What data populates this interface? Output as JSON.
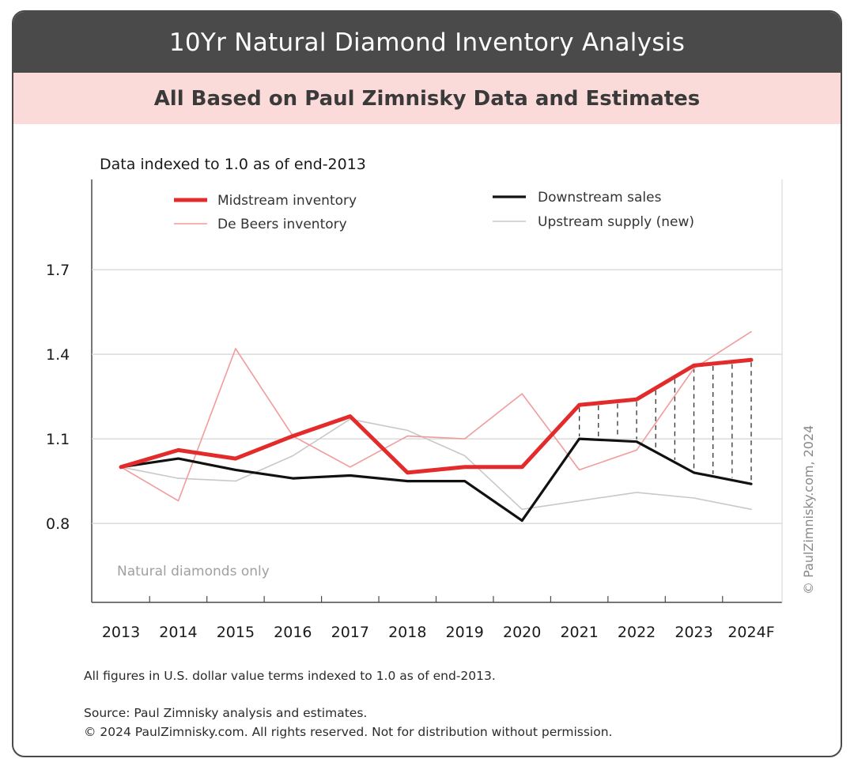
{
  "header": {
    "title": "10Yr Natural Diamond Inventory Analysis",
    "subtitle": "All Based on Paul Zimnisky Data and Estimates"
  },
  "chart_data": {
    "type": "line",
    "title": "Data indexed to 1.0  as of end-2013",
    "categories": [
      "2013",
      "2014",
      "2015",
      "2016",
      "2017",
      "2018",
      "2019",
      "2020",
      "2021",
      "2022",
      "2023",
      "2024F"
    ],
    "y_ticks": [
      "0.8",
      "1.1",
      "1.4",
      "1.7"
    ],
    "ylim": [
      0.52,
      2.02
    ],
    "grid": true,
    "legend_position": "top",
    "series": [
      {
        "name": "Upstream supply (new)",
        "color": "#c8c8c8",
        "values": [
          1.0,
          0.96,
          0.95,
          1.04,
          1.17,
          1.13,
          1.04,
          0.85,
          0.88,
          0.91,
          0.89,
          0.85
        ]
      },
      {
        "name": "De Beers inventory",
        "color": "#f29b9b",
        "values": [
          1.0,
          0.88,
          1.42,
          1.11,
          1.0,
          1.11,
          1.1,
          1.26,
          0.99,
          1.06,
          1.35,
          1.48
        ]
      },
      {
        "name": "Downstream sales",
        "color": "#111111",
        "values": [
          1.0,
          1.03,
          0.99,
          0.96,
          0.97,
          0.95,
          0.95,
          0.81,
          1.1,
          1.09,
          0.98,
          0.94
        ]
      },
      {
        "name": "Midstream inventory",
        "color": "#e32b2b",
        "values": [
          1.0,
          1.06,
          1.03,
          1.11,
          1.18,
          0.98,
          1.0,
          1.0,
          1.22,
          1.24,
          1.36,
          1.38
        ]
      }
    ],
    "annotations": {
      "note": "Natural diamonds only",
      "copyright_vertical": "© PaulZimnisky.com, 2024"
    }
  },
  "footer": {
    "note": "All figures in U.S. dollar value terms indexed to 1.0 as of end-2013.",
    "source": "Source: Paul Zimnisky analysis and estimates.",
    "rights": "© 2024 PaulZimnisky.com. All rights reserved. Not for distribution without permission."
  }
}
